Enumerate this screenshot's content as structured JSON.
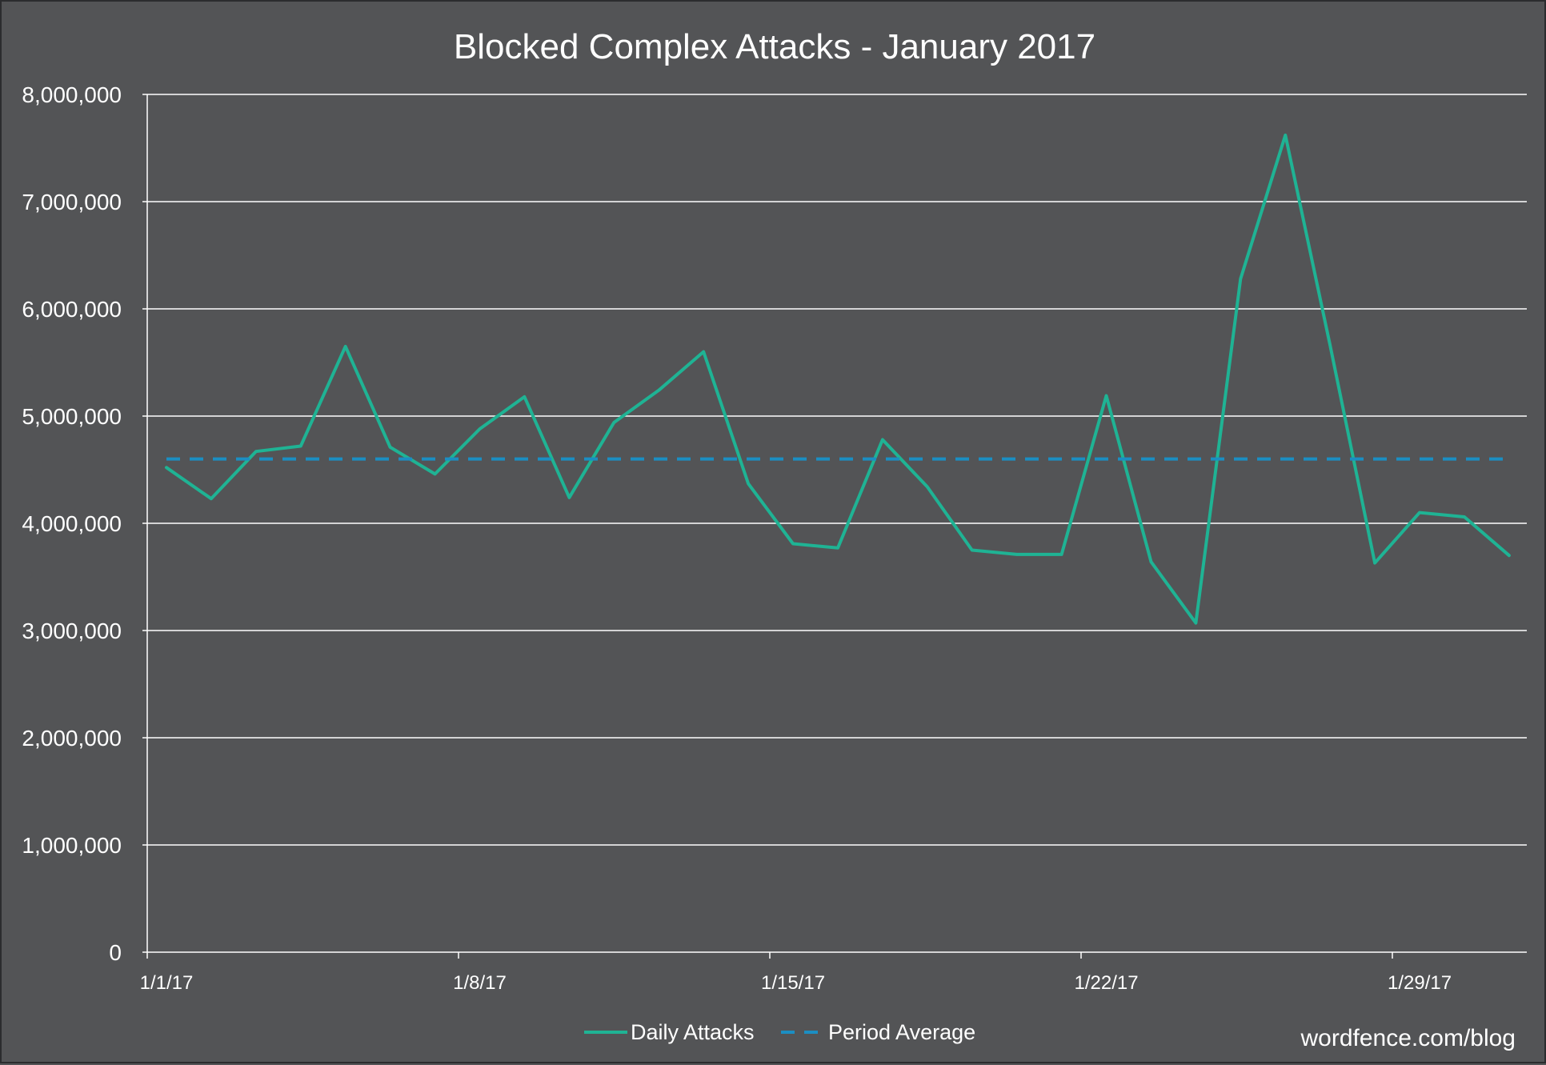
{
  "chart_data": {
    "type": "line",
    "title": "Blocked Complex Attacks - January 2017",
    "xlabel": "",
    "ylabel": "",
    "ylim": [
      0,
      8000000
    ],
    "y_ticks": [
      {
        "value": 0,
        "label": "0"
      },
      {
        "value": 1000000,
        "label": "1,000,000"
      },
      {
        "value": 2000000,
        "label": "2,000,000"
      },
      {
        "value": 3000000,
        "label": "3,000,000"
      },
      {
        "value": 4000000,
        "label": "4,000,000"
      },
      {
        "value": 5000000,
        "label": "5,000,000"
      },
      {
        "value": 6000000,
        "label": "6,000,000"
      },
      {
        "value": 7000000,
        "label": "7,000,000"
      },
      {
        "value": 8000000,
        "label": "8,000,000"
      }
    ],
    "x": [
      "1/1/17",
      "1/2/17",
      "1/3/17",
      "1/4/17",
      "1/5/17",
      "1/6/17",
      "1/7/17",
      "1/8/17",
      "1/9/17",
      "1/10/17",
      "1/11/17",
      "1/12/17",
      "1/13/17",
      "1/14/17",
      "1/15/17",
      "1/16/17",
      "1/17/17",
      "1/18/17",
      "1/19/17",
      "1/20/17",
      "1/21/17",
      "1/22/17",
      "1/23/17",
      "1/24/17",
      "1/25/17",
      "1/26/17",
      "1/27/17",
      "1/28/17",
      "1/29/17",
      "1/30/17",
      "1/31/17"
    ],
    "x_tick_labels": [
      {
        "index": 0,
        "label": "1/1/17"
      },
      {
        "index": 7,
        "label": "1/8/17"
      },
      {
        "index": 14,
        "label": "1/15/17"
      },
      {
        "index": 21,
        "label": "1/22/17"
      },
      {
        "index": 28,
        "label": "1/29/17"
      }
    ],
    "grid": true,
    "legend_position": "bottom",
    "series": [
      {
        "name": "Daily Attacks",
        "style": "solid",
        "color": "#1fb394",
        "values": [
          4520000,
          4230000,
          4670000,
          4720000,
          5650000,
          4710000,
          4460000,
          4880000,
          5180000,
          4240000,
          4940000,
          5240000,
          5600000,
          4370000,
          3810000,
          3770000,
          4780000,
          4340000,
          3750000,
          3710000,
          3710000,
          5190000,
          3640000,
          3070000,
          6280000,
          7620000,
          5660000,
          3630000,
          4100000,
          4060000,
          3700000
        ]
      },
      {
        "name": "Period Average",
        "style": "dashed",
        "color": "#1b8ec2",
        "values": [
          4600000,
          4600000,
          4600000,
          4600000,
          4600000,
          4600000,
          4600000,
          4600000,
          4600000,
          4600000,
          4600000,
          4600000,
          4600000,
          4600000,
          4600000,
          4600000,
          4600000,
          4600000,
          4600000,
          4600000,
          4600000,
          4600000,
          4600000,
          4600000,
          4600000,
          4600000,
          4600000,
          4600000,
          4600000,
          4600000,
          4600000
        ]
      }
    ]
  },
  "watermark": "wordfence.com/blog",
  "colors": {
    "background": "#535456",
    "grid": "#ffffff",
    "text": "#ffffff"
  }
}
